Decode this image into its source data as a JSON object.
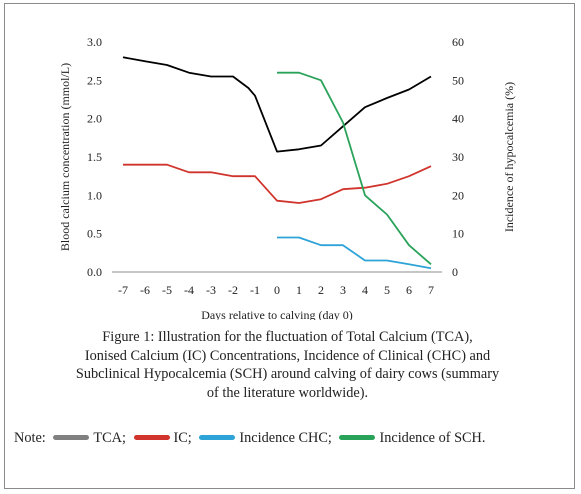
{
  "chart_data": {
    "type": "line",
    "x": [
      -7,
      -6,
      -5,
      -4,
      -3,
      -2,
      -1,
      0,
      1,
      2,
      3,
      4,
      5,
      6,
      7
    ],
    "xlabel": "Days relative to calving (day 0)",
    "ylabel_left": "Blood calcium concentration (mmol/L)",
    "ylabel_right": "Incidence of hypocalcemia (%)",
    "ylim_left": [
      0,
      3.0
    ],
    "ylim_right": [
      0,
      60
    ],
    "yticks_left": [
      "0.0",
      "0.5",
      "1.0",
      "1.5",
      "2.0",
      "2.5",
      "3.0"
    ],
    "yticks_right": [
      "0",
      "10",
      "20",
      "30",
      "40",
      "50",
      "60"
    ],
    "xticks": [
      "-7",
      "-6",
      "-5",
      "-4",
      "-3",
      "-2",
      "-1",
      "0",
      "1",
      "2",
      "3",
      "4",
      "5",
      "6",
      "7"
    ],
    "grid": false,
    "series": [
      {
        "name": "TCA",
        "axis": "left",
        "color": "#000000",
        "points": [
          [
            -7,
            2.8
          ],
          [
            -6,
            2.75
          ],
          [
            -5,
            2.7
          ],
          [
            -4,
            2.6
          ],
          [
            -3,
            2.55
          ],
          [
            -2,
            2.55
          ],
          [
            -1.3,
            2.4
          ],
          [
            -1,
            2.3
          ],
          [
            0,
            1.57
          ],
          [
            1,
            1.6
          ],
          [
            2,
            1.65
          ],
          [
            3,
            1.9
          ],
          [
            4,
            2.15
          ],
          [
            5,
            2.27
          ],
          [
            6,
            2.38
          ],
          [
            7,
            2.55
          ]
        ]
      },
      {
        "name": "IC",
        "axis": "left",
        "color": "#d0342c",
        "points": [
          [
            -7,
            1.4
          ],
          [
            -6,
            1.4
          ],
          [
            -5,
            1.4
          ],
          [
            -4,
            1.3
          ],
          [
            -3,
            1.3
          ],
          [
            -2,
            1.25
          ],
          [
            -1,
            1.25
          ],
          [
            0,
            0.93
          ],
          [
            1,
            0.9
          ],
          [
            2,
            0.95
          ],
          [
            3,
            1.08
          ],
          [
            4,
            1.1
          ],
          [
            5,
            1.15
          ],
          [
            6,
            1.25
          ],
          [
            7,
            1.38
          ]
        ]
      },
      {
        "name": "Incidence CHC",
        "axis": "right",
        "color": "#2ea3d8",
        "points": [
          [
            0,
            9
          ],
          [
            1,
            9
          ],
          [
            2,
            7
          ],
          [
            3,
            7
          ],
          [
            4,
            3
          ],
          [
            5,
            3
          ],
          [
            6,
            2
          ],
          [
            7,
            1
          ]
        ]
      },
      {
        "name": "Incidence of SCH",
        "axis": "right",
        "color": "#2aa35a",
        "points": [
          [
            0,
            52
          ],
          [
            1,
            52
          ],
          [
            2,
            50
          ],
          [
            3,
            39
          ],
          [
            4,
            20
          ],
          [
            5,
            15
          ],
          [
            6,
            7
          ],
          [
            7,
            2
          ]
        ]
      }
    ]
  },
  "caption": {
    "line1": "Figure 1: Illustration for the fluctuation of Total Calcium (TCA),",
    "line2": "Ionised Calcium (IC) Concentrations, Incidence of Clinical (CHC) and",
    "line3": "Subclinical Hypocalcemia (SCH) around calving of dairy cows (summary",
    "line4": "of the literature worldwide)."
  },
  "note": {
    "prefix": "Note:",
    "items": [
      {
        "label": "TCA;",
        "color": "#808080"
      },
      {
        "label": "IC;",
        "color": "#d0342c"
      },
      {
        "label": "Incidence CHC;",
        "color": "#2ea3d8"
      },
      {
        "label": "Incidence of SCH.",
        "color": "#2aa35a"
      }
    ]
  }
}
